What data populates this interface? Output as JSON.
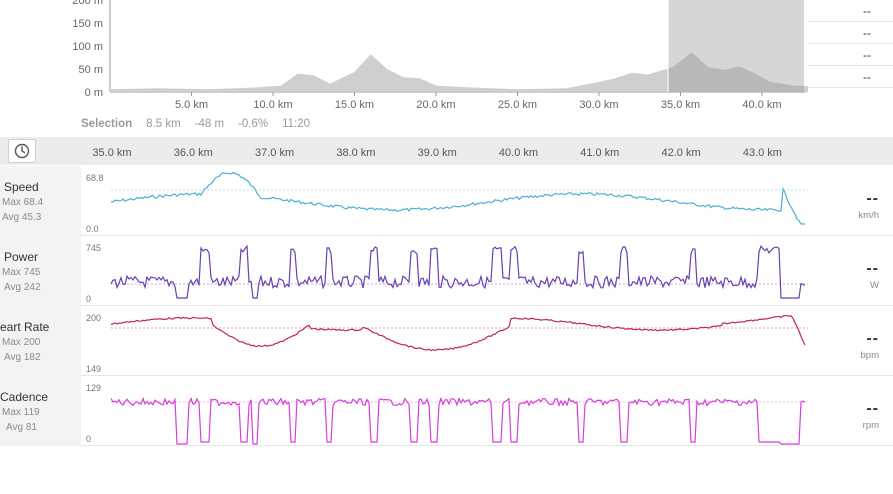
{
  "elevation": {
    "y_ticks": [
      "200 m",
      "150 m",
      "100 m",
      "50 m",
      "0 m"
    ],
    "x_ticks": [
      "5.0 km",
      "10.0 km",
      "15.0 km",
      "20.0 km",
      "25.0 km",
      "30.0 km",
      "35.0 km",
      "40.0 km"
    ],
    "side_values": [
      "--",
      "--",
      "--",
      "--"
    ],
    "fill_color": "#cfcfcf",
    "selection_color": "#b8b8b8"
  },
  "selection": {
    "label": "Selection",
    "distance": "8.5 km",
    "elevation": "-48 m",
    "grade": "-0.6%",
    "time": "11:20"
  },
  "detail_axis": {
    "clock_icon": "clock-icon",
    "x_ticks": [
      "35.0 km",
      "36.0 km",
      "37.0 km",
      "38.0 km",
      "39.0 km",
      "40.0 km",
      "41.0 km",
      "42.0 km",
      "43.0 km"
    ]
  },
  "metrics": [
    {
      "name": "Speed",
      "max": "Max 68.4",
      "avg": "Avg 45.3",
      "top": "68.8",
      "bottom": "0.0",
      "value": "--",
      "unit": "km/h",
      "color": "#4bb0d6"
    },
    {
      "name": "Power",
      "max": "Max 745",
      "avg": "Avg 242",
      "top": "745",
      "bottom": "0",
      "value": "--",
      "unit": "W",
      "color": "#6a3fb0"
    },
    {
      "name": "eart Rate",
      "max": "Max 200",
      "avg": "Avg 182",
      "top": "200",
      "bottom": "149",
      "value": "--",
      "unit": "bpm",
      "color": "#c0255a"
    },
    {
      "name": "Cadence",
      "max": "Max 119",
      "avg": "Avg 81",
      "top": "129",
      "bottom": "0",
      "value": "--",
      "unit": "rpm",
      "color": "#d43fd8"
    }
  ]
}
